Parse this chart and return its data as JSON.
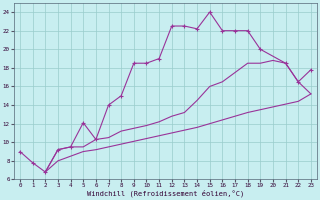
{
  "xlabel": "Windchill (Refroidissement éolien,°C)",
  "bg_color": "#c8eef0",
  "grid_color": "#99cccc",
  "line_color": "#993399",
  "xlim": [
    -0.5,
    23.5
  ],
  "ylim": [
    6,
    25
  ],
  "xticks": [
    0,
    1,
    2,
    3,
    4,
    5,
    6,
    7,
    8,
    9,
    10,
    11,
    12,
    13,
    14,
    15,
    16,
    17,
    18,
    19,
    20,
    21,
    22,
    23
  ],
  "yticks": [
    6,
    8,
    10,
    12,
    14,
    16,
    18,
    20,
    22,
    24
  ],
  "curve1_x": [
    0,
    1,
    2,
    3,
    4,
    5,
    6,
    7,
    8,
    9,
    10,
    11,
    12,
    13,
    14,
    15,
    16,
    17,
    18,
    19,
    21,
    22,
    23
  ],
  "curve1_y": [
    9.0,
    7.8,
    6.8,
    9.2,
    9.5,
    12.1,
    10.3,
    14.0,
    15.0,
    18.5,
    18.5,
    19.0,
    22.5,
    22.5,
    22.2,
    24.0,
    22.0,
    22.0,
    22.0,
    20.0,
    18.5,
    16.5,
    17.8
  ],
  "curve2_x": [
    2,
    3,
    4,
    5,
    6,
    7,
    8,
    9,
    10,
    11,
    12,
    13,
    14,
    15,
    16,
    17,
    18,
    19,
    20,
    21,
    22,
    23
  ],
  "curve2_y": [
    6.8,
    9.2,
    9.5,
    9.5,
    10.3,
    10.5,
    11.2,
    11.5,
    11.8,
    12.2,
    12.8,
    13.2,
    14.5,
    16.0,
    16.5,
    17.5,
    18.5,
    18.5,
    18.8,
    18.5,
    16.5,
    15.2
  ],
  "curve3_x": [
    2,
    3,
    4,
    5,
    6,
    7,
    8,
    9,
    10,
    11,
    12,
    13,
    14,
    15,
    16,
    17,
    18,
    19,
    20,
    21,
    22,
    23
  ],
  "curve3_y": [
    6.8,
    8.0,
    8.5,
    9.0,
    9.2,
    9.5,
    9.8,
    10.1,
    10.4,
    10.7,
    11.0,
    11.3,
    11.6,
    12.0,
    12.4,
    12.8,
    13.2,
    13.5,
    13.8,
    14.1,
    14.4,
    15.2
  ]
}
